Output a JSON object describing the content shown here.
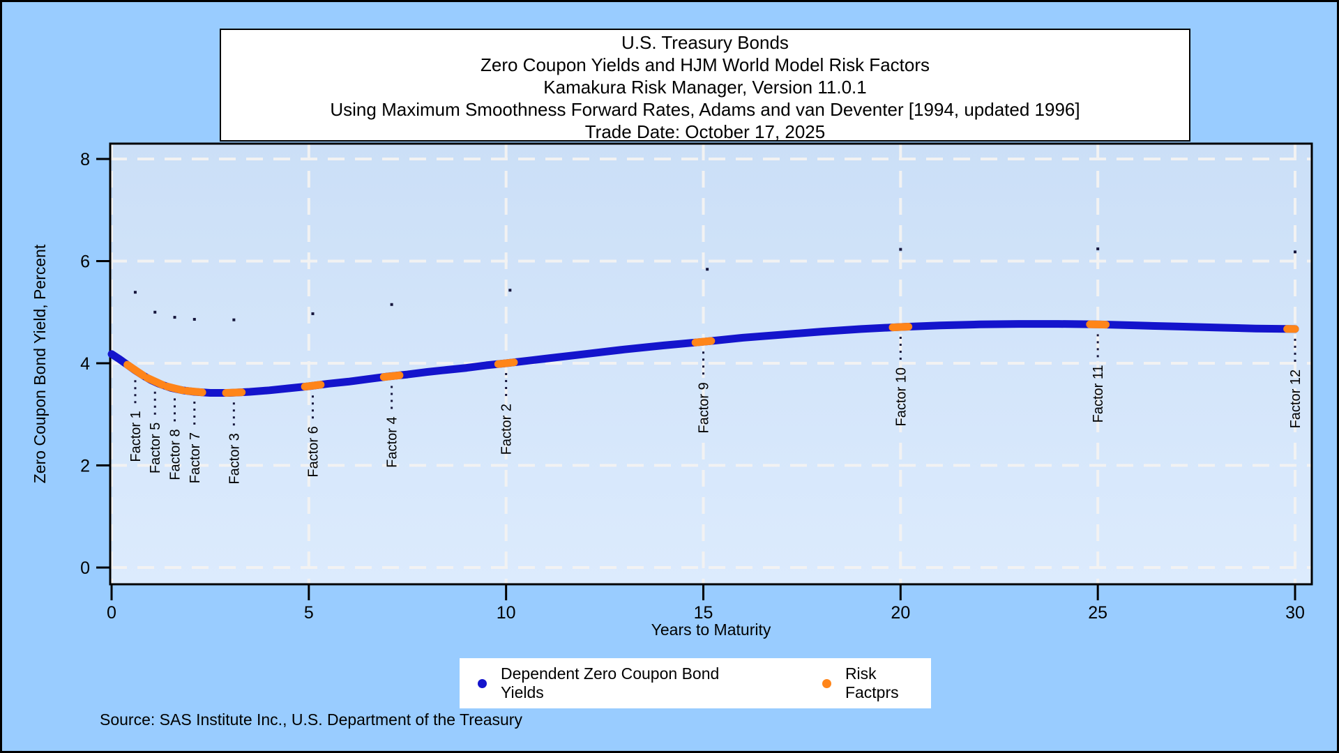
{
  "title_box": {
    "lines": [
      "U.S. Treasury Bonds",
      "Zero Coupon Yields and HJM World Model Risk Factors",
      "Kamakura Risk Manager, Version 11.0.1",
      "Using Maximum Smoothness Forward Rates, Adams and van Deventer [1994, updated 1996]",
      "Trade Date: October 17, 2025"
    ]
  },
  "source": "Source: SAS Institute Inc., U.S. Department of the Treasury",
  "legend": {
    "items": [
      {
        "label": "Dependent Zero Coupon Bond Yields",
        "marker": "blue-dot"
      },
      {
        "label": "Risk Factprs",
        "marker": "orange-dot"
      }
    ]
  },
  "colors": {
    "page_bg": "#99ccff",
    "plot_bg_top": "#cbdff7",
    "plot_bg_bottom": "#dcebfd",
    "curve_blue": "#1414cc",
    "factor_orange": "#ff8519",
    "scatter_dark": "#16163c",
    "grid_white": "#f2f2f2",
    "box_bg": "#ffffff",
    "border": "#000000"
  },
  "chart_data": {
    "type": "scatter",
    "title": "U.S. Treasury Bonds — Zero Coupon Yields and HJM World Model Risk Factors",
    "xlabel": "Years to Maturity",
    "ylabel": "Zero Coupon Bond Yield, Percent",
    "xlim": [
      0,
      30
    ],
    "ylim": [
      0,
      8
    ],
    "xticks": [
      0,
      5,
      10,
      15,
      20,
      25,
      30
    ],
    "yticks": [
      0,
      2,
      4,
      6,
      8
    ],
    "grid": "white dashed gridlines at every tick, on",
    "legend_position": "bottom-center",
    "series": [
      {
        "name": "Dependent Zero Coupon Bond Yields",
        "style": "thick dotted curve",
        "points": [
          [
            0,
            4.18
          ],
          [
            0.2,
            4.08
          ],
          [
            0.4,
            3.97
          ],
          [
            0.6,
            3.86
          ],
          [
            0.8,
            3.76
          ],
          [
            1,
            3.67
          ],
          [
            1.2,
            3.6
          ],
          [
            1.5,
            3.52
          ],
          [
            1.8,
            3.47
          ],
          [
            2.1,
            3.44
          ],
          [
            2.5,
            3.42
          ],
          [
            3,
            3.42
          ],
          [
            3.5,
            3.44
          ],
          [
            4,
            3.47
          ],
          [
            4.5,
            3.51
          ],
          [
            5,
            3.55
          ],
          [
            5.5,
            3.6
          ],
          [
            6,
            3.64
          ],
          [
            6.5,
            3.69
          ],
          [
            7,
            3.74
          ],
          [
            7.5,
            3.78
          ],
          [
            8,
            3.83
          ],
          [
            8.5,
            3.87
          ],
          [
            9,
            3.91
          ],
          [
            9.5,
            3.96
          ],
          [
            10,
            4
          ],
          [
            11,
            4.09
          ],
          [
            12,
            4.18
          ],
          [
            13,
            4.27
          ],
          [
            14,
            4.35
          ],
          [
            15,
            4.42
          ],
          [
            16,
            4.5
          ],
          [
            17,
            4.56
          ],
          [
            18,
            4.62
          ],
          [
            19,
            4.67
          ],
          [
            20,
            4.71
          ],
          [
            21,
            4.74
          ],
          [
            22,
            4.76
          ],
          [
            23,
            4.77
          ],
          [
            24,
            4.77
          ],
          [
            25,
            4.76
          ],
          [
            26,
            4.74
          ],
          [
            27,
            4.72
          ],
          [
            28,
            4.7
          ],
          [
            29,
            4.68
          ],
          [
            30,
            4.67
          ]
        ]
      },
      {
        "name": "Risk Factprs",
        "style": "orange segments on curve with dotted leaders and rotated labels",
        "factors": [
          {
            "label": "Factor 1",
            "maturity": 0.6
          },
          {
            "label": "Factor 5",
            "maturity": 1.1
          },
          {
            "label": "Factor 8",
            "maturity": 1.6
          },
          {
            "label": "Factor 7",
            "maturity": 2.1
          },
          {
            "label": "Factor 3",
            "maturity": 3.1
          },
          {
            "label": "Factor 6",
            "maturity": 5.1
          },
          {
            "label": "Factor 4",
            "maturity": 7.1
          },
          {
            "label": "Factor 2",
            "maturity": 10
          },
          {
            "label": "Factor 9",
            "maturity": 15
          },
          {
            "label": "Factor 10",
            "maturity": 20
          },
          {
            "label": "Factor 11",
            "maturity": 25
          },
          {
            "label": "Factor 12",
            "maturity": 30
          }
        ]
      },
      {
        "name": "observed bond yields (small dark dots)",
        "style": "tiny dark points",
        "points": [
          [
            0.6,
            5.39
          ],
          [
            1.1,
            5.0
          ],
          [
            1.6,
            4.9
          ],
          [
            2.1,
            4.86
          ],
          [
            3.1,
            4.85
          ],
          [
            5.1,
            4.97
          ],
          [
            7.1,
            5.15
          ],
          [
            10.1,
            5.43
          ],
          [
            15.1,
            5.84
          ],
          [
            20,
            6.23
          ],
          [
            25,
            6.24
          ],
          [
            30,
            6.18
          ]
        ]
      }
    ]
  }
}
